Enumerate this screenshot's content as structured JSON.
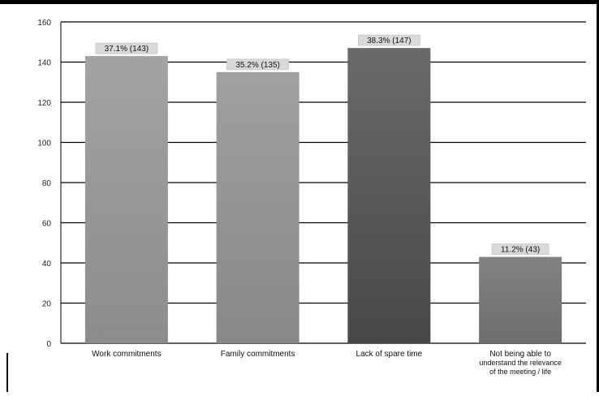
{
  "chart_data": {
    "type": "bar",
    "title": "",
    "xlabel": "",
    "ylabel": "",
    "ylim": [
      0,
      160
    ],
    "yticks": [
      "0",
      "20",
      "40",
      "60",
      "80",
      "100",
      "120",
      "140",
      "160"
    ],
    "grid": true,
    "categories": [
      [
        "Work commitments"
      ],
      [
        "Family commitments"
      ],
      [
        "Lack of spare time"
      ],
      [
        "Not being able to",
        "understand the relevance",
        "of the meeting / life"
      ]
    ],
    "values": [
      143,
      135,
      147,
      43
    ],
    "data_labels": [
      "37.1% (143)",
      "35.2% (135)",
      "38.3% (147)",
      "11.2% (43)"
    ],
    "colors": {
      "bar_light": "#9a9a9a",
      "bar_dark": "#5a5a5a",
      "grid": "#000000",
      "label_bg": "#d9d9d9"
    }
  }
}
